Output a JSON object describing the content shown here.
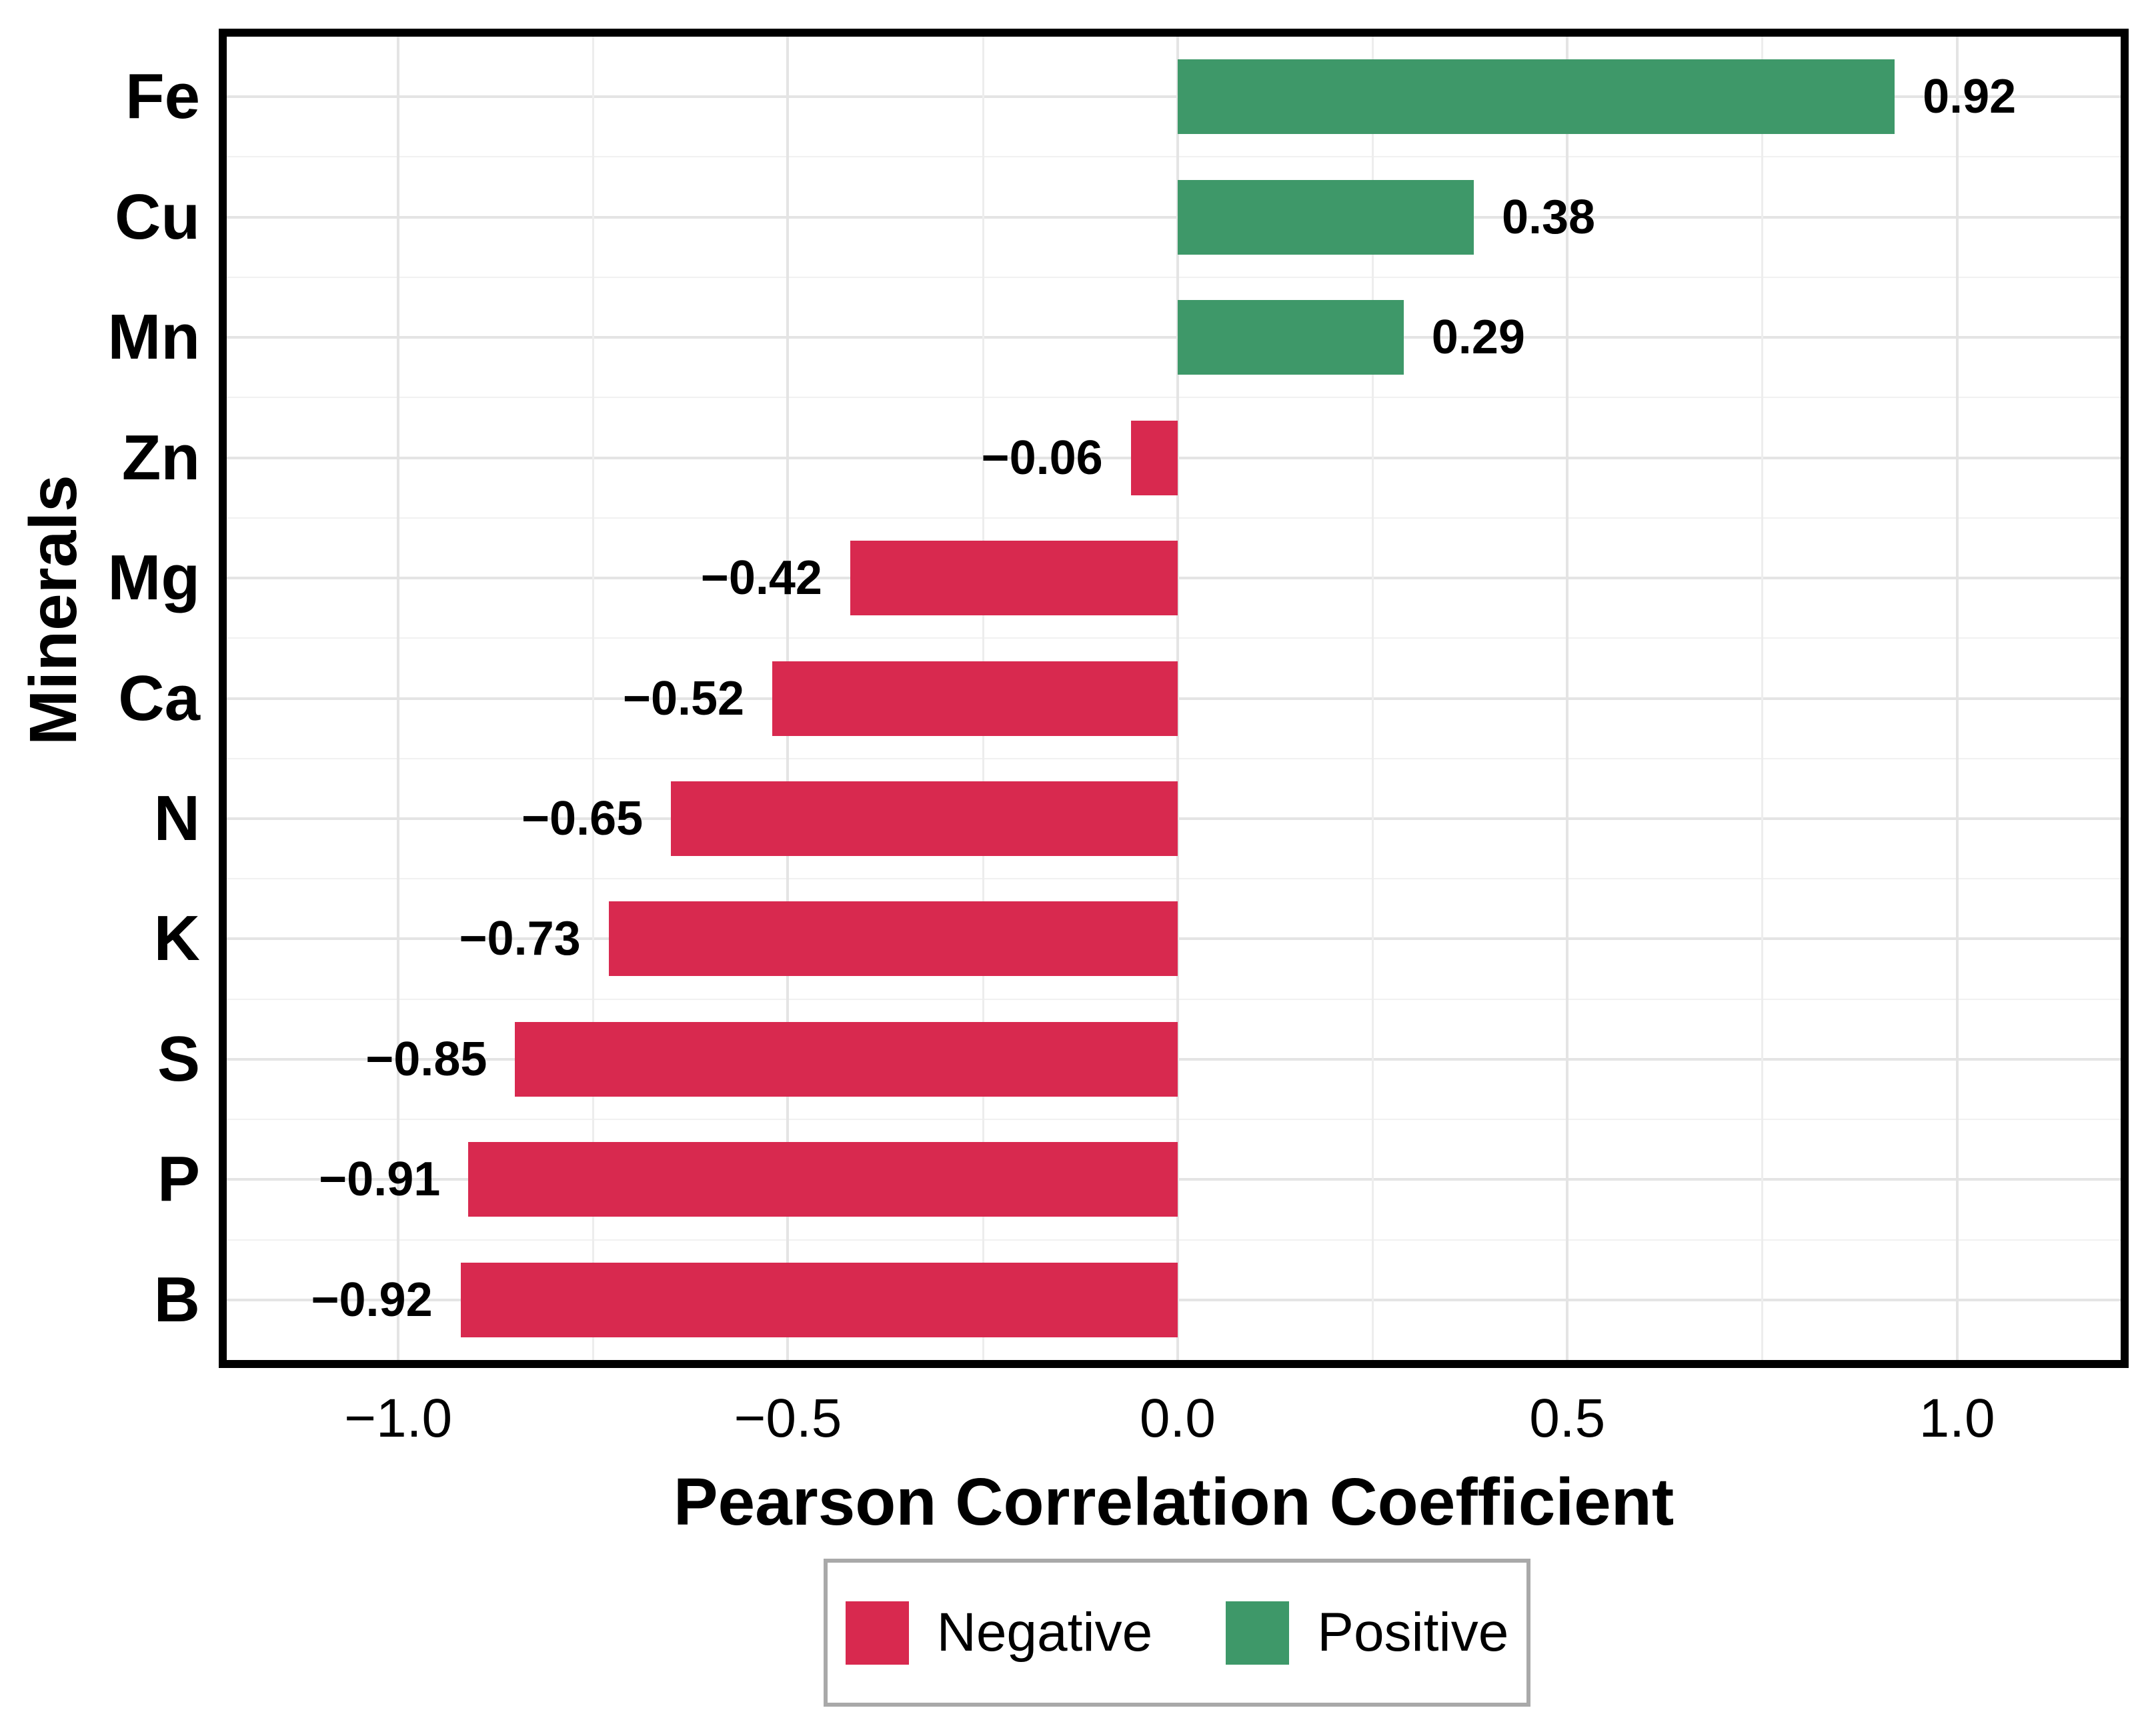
{
  "chart_data": {
    "type": "bar",
    "orientation": "horizontal",
    "xlabel": "Pearson Correlation Coefficient",
    "ylabel": "Minerals",
    "categories": [
      "Fe",
      "Cu",
      "Mn",
      "Zn",
      "Mg",
      "Ca",
      "N",
      "K",
      "S",
      "P",
      "B"
    ],
    "values": [
      0.92,
      0.38,
      0.29,
      -0.06,
      -0.42,
      -0.52,
      -0.65,
      -0.73,
      -0.85,
      -0.91,
      -0.92
    ],
    "bar_labels": [
      "0.92",
      "0.38",
      "0.29",
      "−0.06",
      "−0.42",
      "−0.52",
      "−0.65",
      "−0.73",
      "−0.85",
      "−0.91",
      "−0.92"
    ],
    "xlim": [
      -1.22,
      1.21
    ],
    "x_ticks": [
      {
        "value": -1.0,
        "label": "−1.0"
      },
      {
        "value": -0.5,
        "label": "−0.5"
      },
      {
        "value": 0.0,
        "label": "0.0"
      },
      {
        "value": 0.5,
        "label": "0.5"
      },
      {
        "value": 1.0,
        "label": "1.0"
      }
    ],
    "x_minor_ticks": [
      -0.75,
      -0.25,
      0.25,
      0.75
    ],
    "grid": true,
    "colors": {
      "positive": "#3E9869",
      "negative": "#D8294F",
      "grid_major": "#e4e4e4",
      "grid_minor": "#ededed",
      "panel_border": "#000000"
    },
    "legend": {
      "position": "bottom",
      "entries": [
        {
          "label": "Negative",
          "color": "#D8294F"
        },
        {
          "label": "Positive",
          "color": "#3E9869"
        }
      ]
    }
  }
}
